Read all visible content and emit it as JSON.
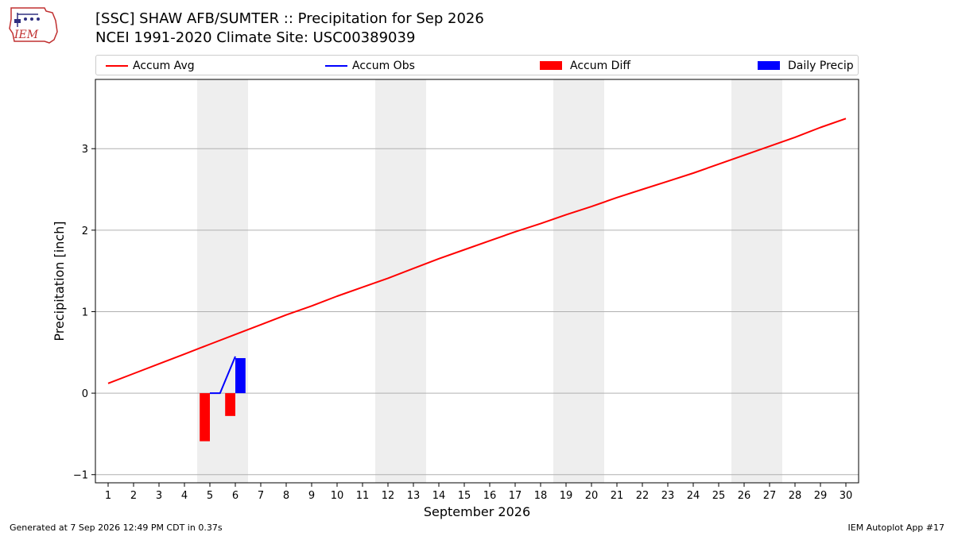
{
  "header": {
    "title_line1": "[SSC] SHAW AFB/SUMTER :: Precipitation for Sep 2026",
    "title_line2": "NCEI 1991-2020 Climate Site: USC00389039"
  },
  "logo": {
    "text": "IEM"
  },
  "legend": [
    {
      "label": "Accum Avg",
      "kind": "line",
      "color": "#ff0000"
    },
    {
      "label": "Accum Obs",
      "kind": "line",
      "color": "#0000ff"
    },
    {
      "label": "Accum Diff",
      "kind": "rect",
      "color": "#ff0000"
    },
    {
      "label": "Daily Precip",
      "kind": "rect",
      "color": "#0000ff"
    }
  ],
  "footer": {
    "left": "Generated at 7 Sep 2026 12:49 PM CDT in 0.37s",
    "right": "IEM Autoplot App #17"
  },
  "chart_data": {
    "type": "line",
    "xlabel": "September 2026",
    "ylabel": "Precipitation [inch]",
    "xlim": [
      0.5,
      30.5
    ],
    "ylim": [
      -1.1,
      3.85
    ],
    "x_ticks": [
      1,
      2,
      3,
      4,
      5,
      6,
      7,
      8,
      9,
      10,
      11,
      12,
      13,
      14,
      15,
      16,
      17,
      18,
      19,
      20,
      21,
      22,
      23,
      24,
      25,
      26,
      27,
      28,
      29,
      30
    ],
    "y_ticks": [
      -1,
      0,
      1,
      2,
      3
    ],
    "y_tick_labels": [
      "−1",
      "0",
      "1",
      "2",
      "3"
    ],
    "grid": "horizontal",
    "weekend_shading": [
      [
        4.5,
        6.5
      ],
      [
        11.5,
        13.5
      ],
      [
        18.5,
        20.5
      ],
      [
        25.5,
        27.5
      ]
    ],
    "series": [
      {
        "name": "Accum Avg",
        "kind": "line",
        "color": "#ff0000",
        "x": [
          1,
          2,
          3,
          4,
          5,
          6,
          7,
          8,
          9,
          10,
          11,
          12,
          13,
          14,
          15,
          16,
          17,
          18,
          19,
          20,
          21,
          22,
          23,
          24,
          25,
          26,
          27,
          28,
          29,
          30
        ],
        "y": [
          0.12,
          0.24,
          0.36,
          0.48,
          0.6,
          0.72,
          0.84,
          0.96,
          1.07,
          1.19,
          1.3,
          1.41,
          1.53,
          1.65,
          1.76,
          1.87,
          1.98,
          2.08,
          2.19,
          2.29,
          2.4,
          2.5,
          2.6,
          2.7,
          2.81,
          2.92,
          3.03,
          3.14,
          3.26,
          3.37
        ]
      },
      {
        "name": "Accum Obs",
        "kind": "line",
        "color": "#0000ff",
        "x": [
          5,
          5.4,
          6
        ],
        "y": [
          0.0,
          0.0,
          0.45
        ]
      },
      {
        "name": "Accum Diff",
        "kind": "bar",
        "color": "#ff0000",
        "x": [
          4.8,
          5.8
        ],
        "y": [
          -0.59,
          -0.28
        ]
      },
      {
        "name": "Daily Precip",
        "kind": "bar",
        "color": "#0000ff",
        "x": [
          6.2
        ],
        "y": [
          0.43
        ]
      }
    ]
  }
}
